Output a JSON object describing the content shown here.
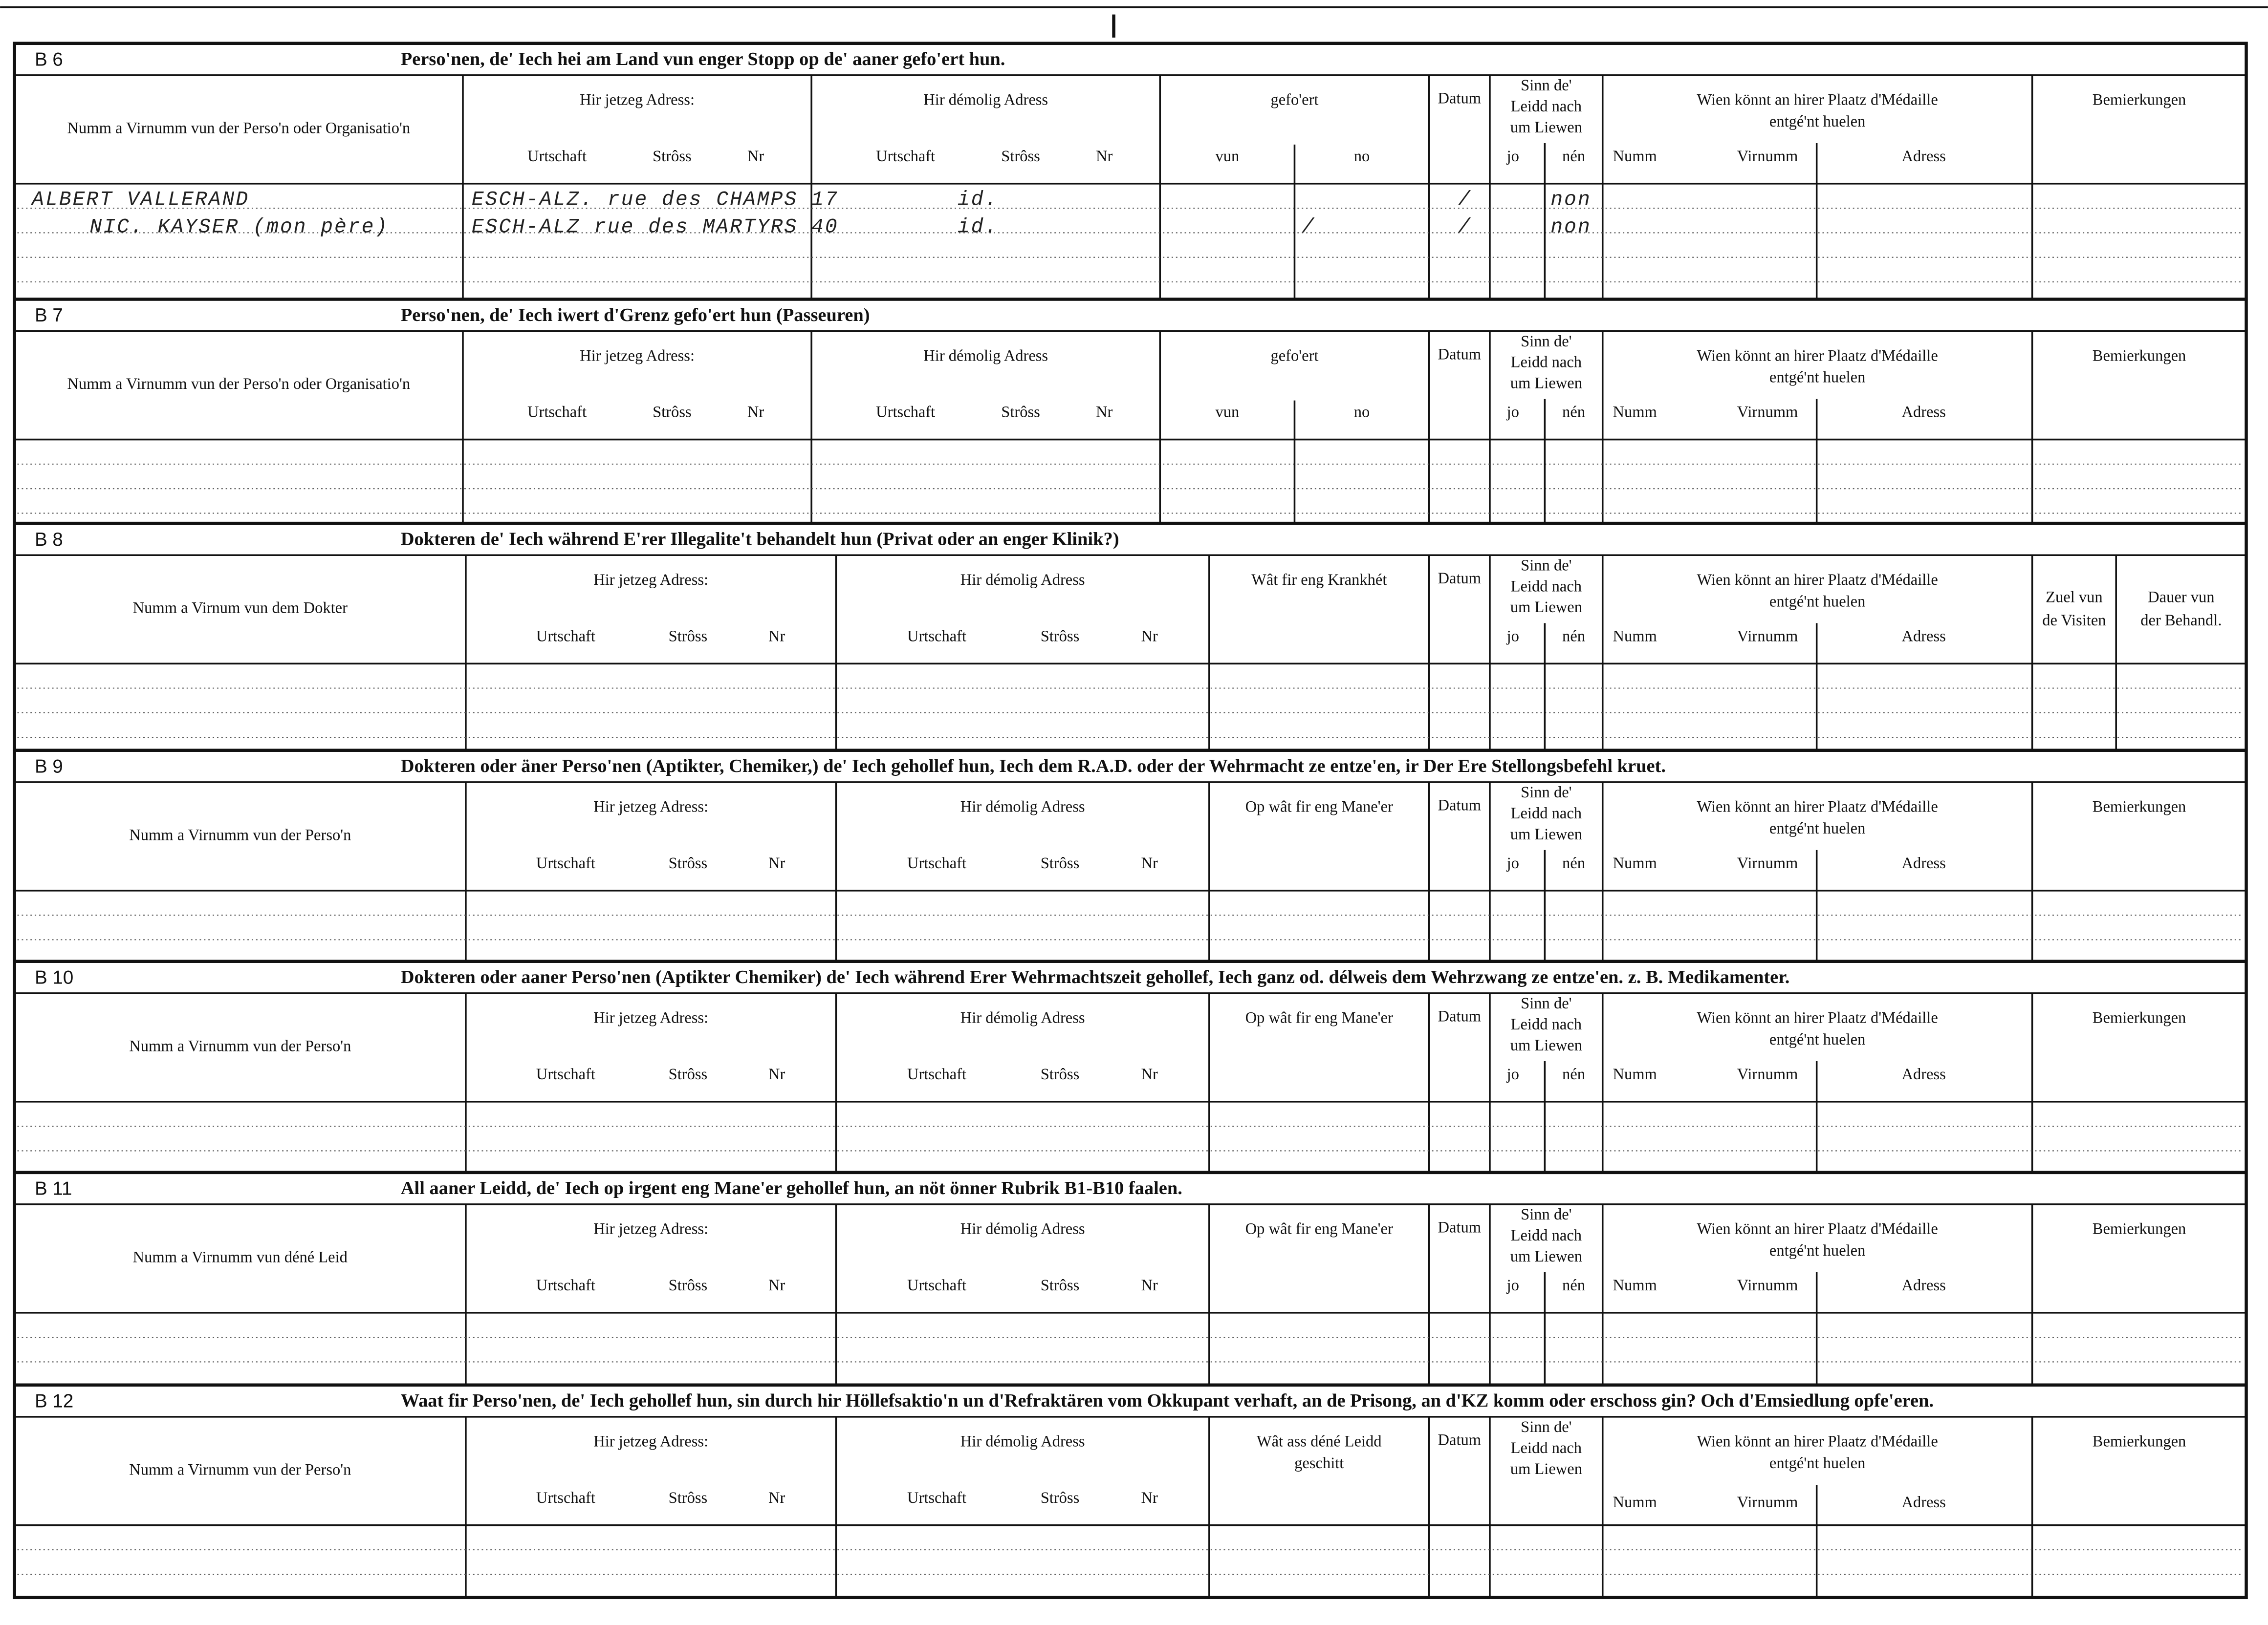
{
  "sections": [
    {
      "code": "B 6",
      "title": "Perso'nen, de' Iech hei am Land vun enger Stopp  op de' aaner gefo'ert hun.",
      "name_header": "Numm a Virnumm vun der Perso'n oder Organisatio'n",
      "current": {
        "label": "Hir jetzeg Adress:",
        "sub": [
          "Urtschaft",
          "Strôss",
          "Nr"
        ]
      },
      "former": {
        "label": "Hir démolig Adress",
        "sub": [
          "Urtschaft",
          "Strôss",
          "Nr"
        ]
      },
      "extra": {
        "label": [
          "gefo'ert"
        ],
        "sub": [
          "vun",
          "no"
        ]
      },
      "date": "Datum",
      "sinn": {
        "label": [
          "Sinn de'",
          "Leidd  nach",
          "um Liewen"
        ],
        "sub": [
          "jo",
          "nén"
        ]
      },
      "medal": {
        "label": [
          "Wien  könnt  an  hirer  Plaatz  d'Médaille",
          "entgé'nt huelen"
        ],
        "sub": [
          "Numm",
          "Virnumm",
          "Adress"
        ]
      },
      "remarks": [
        [
          "Bemierkungen"
        ]
      ],
      "entries": [
        {
          "name": "ALBERT VALLERAND",
          "current": "ESCH-ALZ. rue des CHAMPS 17",
          "former": "id.",
          "date": "/",
          "nen": "non"
        },
        {
          "name": "NIC. KAYSER (mon père)",
          "current": "ESCH-ALZ rue des MARTYRS 40",
          "former": "id.",
          "extra": "/",
          "date": "/",
          "nen": "non"
        }
      ]
    },
    {
      "code": "B 7",
      "title": "Perso'nen, de' Iech iwert d'Grenz gefo'ert hun (Passeuren)",
      "name_header": "Numm a Virnumm vun der Perso'n oder Organisatio'n",
      "current": {
        "label": "Hir jetzeg Adress:",
        "sub": [
          "Urtschaft",
          "Strôss",
          "Nr"
        ]
      },
      "former": {
        "label": "Hir démolig Adress",
        "sub": [
          "Urtschaft",
          "Strôss",
          "Nr"
        ]
      },
      "extra": {
        "label": [
          "gefo'ert"
        ],
        "sub": [
          "vun",
          "no"
        ]
      },
      "date": "Datum",
      "sinn": {
        "label": [
          "Sinn de'",
          "Leidd  nach",
          "um Liewen"
        ],
        "sub": [
          "jo",
          "nén"
        ]
      },
      "medal": {
        "label": [
          "Wien  könnt  an  hirer  Plaatz  d'Médaille",
          "entgé'nt huelen"
        ],
        "sub": [
          "Numm",
          "Virnumm",
          "Adress"
        ]
      },
      "remarks": [
        [
          "Bemierkungen"
        ]
      ]
    },
    {
      "code": "B 8",
      "title": "Dokteren de' Iech während E'rer Illegalite't behandelt hun (Privat oder an enger Klinik?)",
      "name_header": "Numm a Virnum vun dem Dokter",
      "current": {
        "label": "Hir jetzeg Adress:",
        "sub": [
          "Urtschaft",
          "Strôss",
          "Nr"
        ]
      },
      "former": {
        "label": "Hir démolig Adress",
        "sub": [
          "Urtschaft",
          "Strôss",
          "Nr"
        ]
      },
      "extra": {
        "label": [
          "Wât fir eng Krankhét"
        ]
      },
      "date": "Datum",
      "sinn": {
        "label": [
          "Sinn de'",
          "Leidd  nach",
          "um Liewen"
        ],
        "sub": [
          "jo",
          "nén"
        ]
      },
      "medal": {
        "label": [
          "Wien  könnt  an  hirer  Plaatz  d'Médaille",
          "entgé'nt huelen"
        ],
        "sub": [
          "Numm",
          "Virnumm",
          "Adress"
        ]
      },
      "remarks": [
        [
          "Zuel vun",
          "de Visiten"
        ],
        [
          "Dauer vun",
          "der Behandl."
        ]
      ]
    },
    {
      "code": "B 9",
      "title": "Dokteren oder äner Perso'nen (Aptikter, Chemiker,) de' Iech gehollef hun, Iech dem R.A.D. oder der Wehrmacht ze entze'en, ir Der Ere Stellongsbefehl kruet.",
      "name_header": "Numm a Virnumm vun der Perso'n",
      "current": {
        "label": "Hir jetzeg Adress:",
        "sub": [
          "Urtschaft",
          "Strôss",
          "Nr"
        ]
      },
      "former": {
        "label": "Hir démolig Adress",
        "sub": [
          "Urtschaft",
          "Strôss",
          "Nr"
        ]
      },
      "extra": {
        "label": [
          "Op wât fir eng Mane'er"
        ]
      },
      "date": "Datum",
      "sinn": {
        "label": [
          "Sinn de'",
          "Leidd  nach",
          "um Liewen"
        ],
        "sub": [
          "jo",
          "nén"
        ]
      },
      "medal": {
        "label": [
          "Wien  könnt  an  hirer  Plaatz  d'Médaille",
          "entgé'nt huelen"
        ],
        "sub": [
          "Numm",
          "Virnumm",
          "Adress"
        ]
      },
      "remarks": [
        [
          "Bemierkungen"
        ]
      ]
    },
    {
      "code": "B 10",
      "title": "Dokteren oder aaner Perso'nen (Aptikter Chemiker) de' Iech während Erer Wehrmachtszeit gehollef, Iech ganz od. délweis dem Wehrzwang ze entze'en. z. B. Medikamenter.",
      "name_header": "Numm a Virnumm vun der Perso'n",
      "current": {
        "label": "Hir jetzeg Adress:",
        "sub": [
          "Urtschaft",
          "Strôss",
          "Nr"
        ]
      },
      "former": {
        "label": "Hir démolig Adress",
        "sub": [
          "Urtschaft",
          "Strôss",
          "Nr"
        ]
      },
      "extra": {
        "label": [
          "Op wât fir eng Mane'er"
        ]
      },
      "date": "Datum",
      "sinn": {
        "label": [
          "Sinn de'",
          "Leidd  nach",
          "um Liewen"
        ],
        "sub": [
          "jo",
          "nén"
        ]
      },
      "medal": {
        "label": [
          "Wien  könnt  an  hirer  Plaatz  d'Médaille",
          "entgé'nt huelen"
        ],
        "sub": [
          "Numm",
          "Virnumm",
          "Adress"
        ]
      },
      "remarks": [
        [
          "Bemierkungen"
        ]
      ]
    },
    {
      "code": "B 11",
      "title": "All aaner Leidd, de' Iech op irgent eng Mane'er  gehollef hun, an nöt önner Rubrik B1-B10 faalen.",
      "name_header": "Numm a Virnumm vun déné Leid",
      "current": {
        "label": "Hir jetzeg Adress:",
        "sub": [
          "Urtschaft",
          "Strôss",
          "Nr"
        ]
      },
      "former": {
        "label": "Hir démolig Adress",
        "sub": [
          "Urtschaft",
          "Strôss",
          "Nr"
        ]
      },
      "extra": {
        "label": [
          "Op wât fir eng Mane'er"
        ]
      },
      "date": "Datum",
      "sinn": {
        "label": [
          "Sinn de'",
          "Leidd  nach",
          "um Liewen"
        ],
        "sub": [
          "jo",
          "nén"
        ]
      },
      "medal": {
        "label": [
          "Wien  könnt  an  hirer  Plaatz  d'Médaille",
          "entgé'nt huelen"
        ],
        "sub": [
          "Numm",
          "Virnumm",
          "Adress"
        ]
      },
      "remarks": [
        [
          "Bemierkungen"
        ]
      ]
    },
    {
      "code": "B 12",
      "title": "Waat fir Perso'nen, de' Iech gehollef hun, sin durch hir Höllefsaktio'n un d'Refraktären vom Okkupant verhaft, an de Prisong, an d'KZ komm oder  erschoss gin? Och d'Emsiedlung opfe'eren.",
      "name_header": "Numm a Virnumm vun der Perso'n",
      "current": {
        "label": "Hir jetzeg Adress:",
        "sub": [
          "Urtschaft",
          "Strôss",
          "Nr"
        ]
      },
      "former": {
        "label": "Hir démolig Adress",
        "sub": [
          "Urtschaft",
          "Strôss",
          "Nr"
        ]
      },
      "extra": {
        "label": [
          "Wât ass déné Leidd",
          "geschitt"
        ]
      },
      "date": "Datum",
      "sinn": {
        "label": [
          "Sinn de'",
          "Leidd  nach",
          "um Liewen"
        ]
      },
      "medal": {
        "label": [
          "Wien  könnt  an  hirer  Plaatz  d'Médaille",
          "entgé'nt huelen"
        ],
        "sub": [
          "Numm",
          "Virnumm",
          "Adress"
        ]
      },
      "remarks": [
        [
          "Bemierkungen"
        ]
      ]
    }
  ]
}
